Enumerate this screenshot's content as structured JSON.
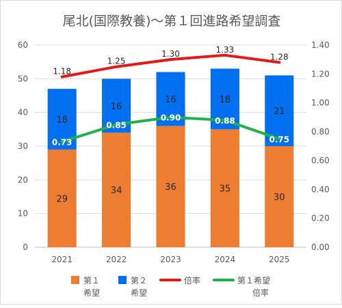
{
  "chart_data": {
    "type": "bar",
    "title": "尾北(国際教養)〜第１回進路希望調査",
    "categories": [
      "2021",
      "2022",
      "2023",
      "2024",
      "2025"
    ],
    "series": [
      {
        "name": "第１希望",
        "kind": "stacked-bar",
        "axis": "left",
        "color": "#ED7D31",
        "values": [
          29,
          34,
          36,
          35,
          30
        ]
      },
      {
        "name": "第２希望",
        "kind": "stacked-bar",
        "axis": "left",
        "color": "#0070F0",
        "values": [
          18,
          16,
          16,
          18,
          21
        ]
      },
      {
        "name": "倍率",
        "kind": "line",
        "axis": "right",
        "color": "#E81717",
        "values": [
          1.18,
          1.25,
          1.3,
          1.33,
          1.28
        ]
      },
      {
        "name": "第１希望倍率",
        "kind": "line",
        "axis": "right",
        "color": "#1FB24A",
        "values": [
          0.73,
          0.85,
          0.9,
          0.88,
          0.75
        ]
      }
    ],
    "data_labels": {
      "第１希望": [
        "29",
        "34",
        "36",
        "35",
        "30"
      ],
      "第２希望": [
        "18",
        "16",
        "16",
        "18",
        "21"
      ],
      "倍率": [
        "1.18",
        "1.25",
        "1.30",
        "1.33",
        "1.28"
      ],
      "第１希望倍率": [
        "0.73",
        "0.85",
        "0.90",
        "0.88",
        "0.75"
      ]
    },
    "y_left": {
      "min": 0,
      "max": 60,
      "step": 10,
      "ticks": [
        "0",
        "10",
        "20",
        "30",
        "40",
        "50",
        "60"
      ]
    },
    "y_right": {
      "min": 0,
      "max": 1.4,
      "step": 0.2,
      "ticks": [
        "0.00",
        "0.20",
        "0.40",
        "0.60",
        "0.80",
        "1.00",
        "1.20",
        "1.40"
      ]
    },
    "grid": true,
    "legend": {
      "position": "bottom",
      "items": [
        {
          "line1": "第１",
          "line2": "希望",
          "color": "#ED7D31",
          "kind": "box"
        },
        {
          "line1": "第２",
          "line2": "希望",
          "color": "#0070F0",
          "kind": "box"
        },
        {
          "line1": "倍率",
          "line2": "",
          "color": "#E81717",
          "kind": "line"
        },
        {
          "line1": "第１希望",
          "line2": "倍率",
          "color": "#1FB24A",
          "kind": "line"
        }
      ]
    }
  }
}
